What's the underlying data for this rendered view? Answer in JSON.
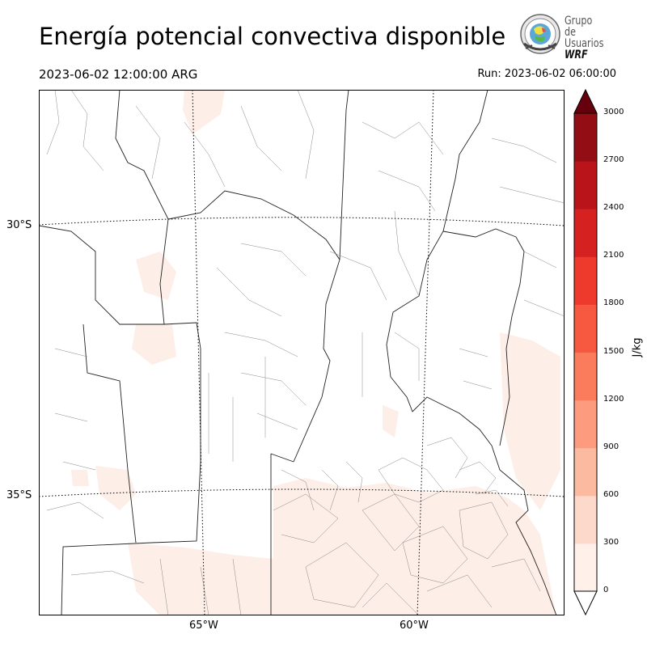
{
  "header": {
    "title": "Energía potencial convectiva disponible",
    "valid_time": "2023-06-02 12:00:00 ARG",
    "run_time": "Run: 2023-06-02 06:00:00"
  },
  "logo": {
    "line1": "Grupo de",
    "line2": "Usuarios",
    "line3": "WRF"
  },
  "map": {
    "lat_labels": [
      "30°S",
      "35°S"
    ],
    "lon_labels": [
      "65°W",
      "60°W"
    ]
  },
  "colorbar": {
    "unit": "J/kg",
    "ticks": [
      "0",
      "300",
      "600",
      "900",
      "1200",
      "1500",
      "1800",
      "2100",
      "2400",
      "2700",
      "3000"
    ],
    "colors": [
      "#fff0ea",
      "#fdd9cb",
      "#fcbba1",
      "#fc9b7d",
      "#fb7c5c",
      "#f6593f",
      "#ed3a2d",
      "#d52221",
      "#b91419",
      "#930d14",
      "#6d0711"
    ],
    "extend_top_color": "#67000d",
    "extend_bottom_color": "#ffffff"
  }
}
